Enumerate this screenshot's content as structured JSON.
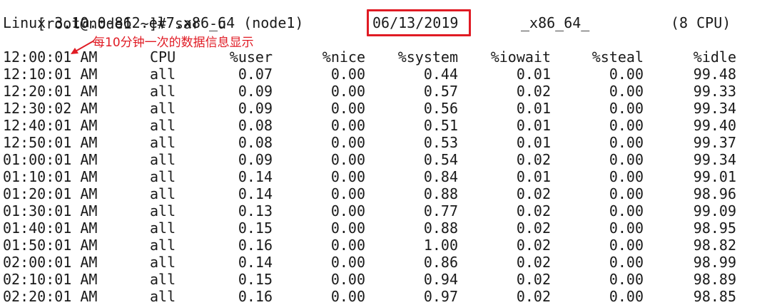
{
  "terminal": {
    "prompt_line": "[root@node1 ~]# sar -u",
    "sysinfo": {
      "kernel": "Linux 3.10.0-862.el7.x86_64 (node1)",
      "date": "06/13/2019",
      "arch": "_x86_64_",
      "cpus": "(8 CPU)"
    },
    "annotation": "每10分钟一次的数据信息显示",
    "accent_color": "#e01b24",
    "columns": [
      "12:00:01 AM",
      "CPU",
      "%user",
      "%nice",
      "%system",
      "%iowait",
      "%steal",
      "%idle"
    ],
    "rows": [
      [
        "12:10:01 AM",
        "all",
        "0.07",
        "0.00",
        "0.44",
        "0.01",
        "0.00",
        "99.48"
      ],
      [
        "12:20:01 AM",
        "all",
        "0.09",
        "0.00",
        "0.57",
        "0.02",
        "0.00",
        "99.33"
      ],
      [
        "12:30:02 AM",
        "all",
        "0.09",
        "0.00",
        "0.56",
        "0.01",
        "0.00",
        "99.34"
      ],
      [
        "12:40:01 AM",
        "all",
        "0.08",
        "0.00",
        "0.51",
        "0.01",
        "0.00",
        "99.40"
      ],
      [
        "12:50:01 AM",
        "all",
        "0.08",
        "0.00",
        "0.53",
        "0.01",
        "0.00",
        "99.37"
      ],
      [
        "01:00:01 AM",
        "all",
        "0.09",
        "0.00",
        "0.54",
        "0.02",
        "0.00",
        "99.34"
      ],
      [
        "01:10:01 AM",
        "all",
        "0.14",
        "0.00",
        "0.84",
        "0.01",
        "0.00",
        "99.01"
      ],
      [
        "01:20:01 AM",
        "all",
        "0.14",
        "0.00",
        "0.88",
        "0.02",
        "0.00",
        "98.96"
      ],
      [
        "01:30:01 AM",
        "all",
        "0.13",
        "0.00",
        "0.77",
        "0.02",
        "0.00",
        "99.09"
      ],
      [
        "01:40:01 AM",
        "all",
        "0.15",
        "0.00",
        "0.88",
        "0.02",
        "0.00",
        "98.95"
      ],
      [
        "01:50:01 AM",
        "all",
        "0.16",
        "0.00",
        "1.00",
        "0.02",
        "0.00",
        "98.82"
      ],
      [
        "02:00:01 AM",
        "all",
        "0.14",
        "0.00",
        "0.86",
        "0.02",
        "0.00",
        "98.99"
      ],
      [
        "02:10:01 AM",
        "all",
        "0.15",
        "0.00",
        "0.94",
        "0.02",
        "0.00",
        "98.89"
      ],
      [
        "02:20:01 AM",
        "all",
        "0.16",
        "0.00",
        "0.97",
        "0.02",
        "0.00",
        "98.85"
      ]
    ]
  }
}
